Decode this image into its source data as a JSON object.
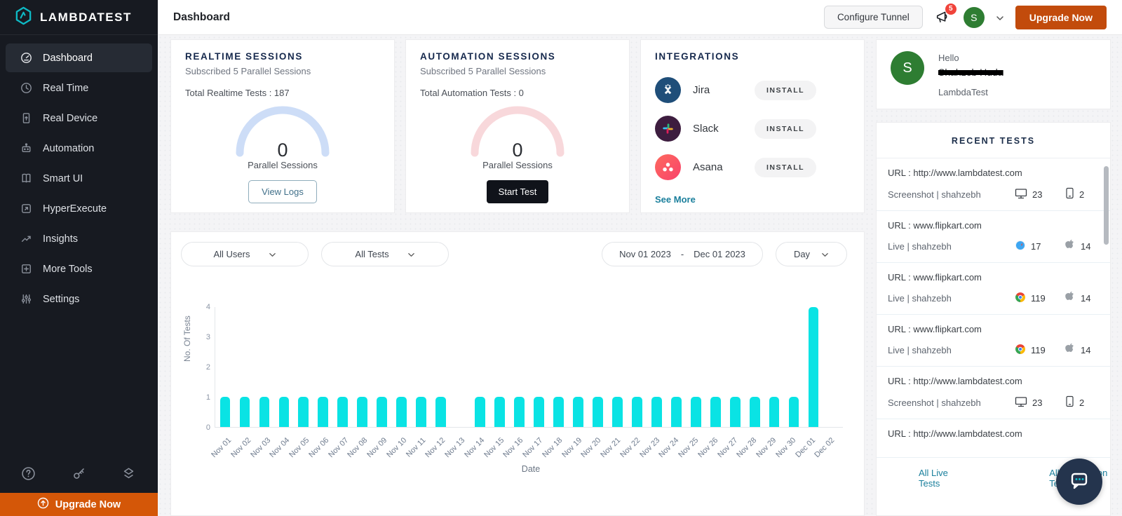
{
  "app": {
    "logo_text": "LAMBDATEST"
  },
  "sidebar": {
    "items": [
      {
        "id": "dashboard",
        "label": "Dashboard",
        "icon": "dashboard-icon",
        "active": true
      },
      {
        "id": "real-time",
        "label": "Real Time",
        "icon": "clock-icon"
      },
      {
        "id": "real-device",
        "label": "Real Device",
        "icon": "device-icon"
      },
      {
        "id": "automation",
        "label": "Automation",
        "icon": "robot-icon"
      },
      {
        "id": "smart-ui",
        "label": "Smart UI",
        "icon": "book-icon"
      },
      {
        "id": "hyperexecute",
        "label": "HyperExecute",
        "icon": "execute-icon"
      },
      {
        "id": "insights",
        "label": "Insights",
        "icon": "trend-icon"
      },
      {
        "id": "more-tools",
        "label": "More Tools",
        "icon": "plus-square-icon"
      },
      {
        "id": "settings",
        "label": "Settings",
        "icon": "sliders-icon"
      }
    ],
    "footer_icons": [
      {
        "id": "help",
        "icon": "help-icon"
      },
      {
        "id": "api-key",
        "icon": "key-icon"
      },
      {
        "id": "billing",
        "icon": "switch-icon"
      }
    ],
    "upgrade_label": "Upgrade Now"
  },
  "header": {
    "title": "Dashboard",
    "configure_tunnel_label": "Configure Tunnel",
    "notification_count": "5",
    "avatar_initial": "S",
    "upgrade_label": "Upgrade Now"
  },
  "cards": {
    "realtime": {
      "title": "REALTIME SESSIONS",
      "subtitle": "Subscribed 5 Parallel Sessions",
      "total": "Total Realtime Tests : 187",
      "gauge_value": "0",
      "gauge_label": "Parallel Sessions",
      "button_label": "View Logs",
      "arc_color": "#cdddf7"
    },
    "automation": {
      "title": "AUTOMATION SESSIONS",
      "subtitle": "Subscribed 5 Parallel Sessions",
      "total": "Total Automation Tests : 0",
      "gauge_value": "0",
      "gauge_label": "Parallel Sessions",
      "button_label": "Start Test",
      "arc_color": "#f8d8db"
    },
    "integrations": {
      "title": "INTEGRATIONS",
      "items": [
        {
          "name": "Jira",
          "action": "INSTALL",
          "icon": "jira-icon",
          "bg": "#1f4e79"
        },
        {
          "name": "Slack",
          "action": "INSTALL",
          "icon": "slack-icon",
          "bg": "#3d1d3f"
        },
        {
          "name": "Asana",
          "action": "INSTALL",
          "icon": "asana-icon",
          "bg": "linear-gradient(135deg,#fd6a5e,#f9426b)"
        }
      ],
      "see_more": "See More"
    }
  },
  "filters": {
    "users": "All Users",
    "tests": "All Tests",
    "date_from": "Nov 01 2023",
    "date_separator": "-",
    "date_to": "Dec 01 2023",
    "granularity": "Day"
  },
  "chart_data": {
    "type": "bar",
    "title": "",
    "xlabel": "Date",
    "ylabel": "No. Of Tests",
    "ylim": [
      0,
      4
    ],
    "yticks": [
      0,
      1,
      2,
      3,
      4
    ],
    "grid": false,
    "legend": "none",
    "bar_color": "#0ae3e4",
    "categories": [
      "Nov 01",
      "Nov 02",
      "Nov 03",
      "Nov 04",
      "Nov 05",
      "Nov 06",
      "Nov 07",
      "Nov 08",
      "Nov 09",
      "Nov 10",
      "Nov 11",
      "Nov 12",
      "Nov 13",
      "Nov 14",
      "Nov 15",
      "Nov 16",
      "Nov 17",
      "Nov 18",
      "Nov 19",
      "Nov 20",
      "Nov 21",
      "Nov 22",
      "Nov 23",
      "Nov 24",
      "Nov 25",
      "Nov 26",
      "Nov 27",
      "Nov 28",
      "Nov 29",
      "Nov 30",
      "Dec 01",
      "Dec 02"
    ],
    "values": [
      1,
      1,
      1,
      1,
      1,
      1,
      1,
      1,
      1,
      1,
      1,
      1,
      0,
      1,
      1,
      1,
      1,
      1,
      1,
      1,
      1,
      1,
      1,
      1,
      1,
      1,
      1,
      1,
      1,
      1,
      4,
      0
    ]
  },
  "user_panel": {
    "greeting": "Hello",
    "name": "Shahzeb Huda",
    "name_redacted": true,
    "org": "LambdaTest",
    "avatar_initial": "S"
  },
  "recent_tests": {
    "title": "RECENT TESTS",
    "items": [
      {
        "url": "URL : http://www.lambdatest.com",
        "meta": "Screenshot | shahzebh",
        "stat1_icon": "monitor-icon",
        "stat1": "23",
        "stat2_icon": "mobile-icon",
        "stat2": "2"
      },
      {
        "url": "URL : www.flipkart.com",
        "meta": "Live | shahzebh",
        "stat1_icon": "safari-icon",
        "stat1": "17",
        "stat2_icon": "apple-icon",
        "stat2": "14"
      },
      {
        "url": "URL : www.flipkart.com",
        "meta": "Live | shahzebh",
        "stat1_icon": "chrome-icon",
        "stat1": "119",
        "stat2_icon": "apple-icon",
        "stat2": "14"
      },
      {
        "url": "URL : www.flipkart.com",
        "meta": "Live | shahzebh",
        "stat1_icon": "chrome-icon",
        "stat1": "119",
        "stat2_icon": "apple-icon",
        "stat2": "14"
      },
      {
        "url": "URL : http://www.lambdatest.com",
        "meta": "Screenshot | shahzebh",
        "stat1_icon": "monitor-icon",
        "stat1": "23",
        "stat2_icon": "mobile-icon",
        "stat2": "2"
      },
      {
        "url": "URL : http://www.lambdatest.com"
      }
    ],
    "footer": {
      "live_label": "All Live Tests",
      "automation_label": "All Automation Tests"
    }
  },
  "colors": {
    "sidebar_bg": "#171a21",
    "sidebar_active": "#262b34",
    "accent_teal": "#0ebac5",
    "orange_button": "#c24b0c",
    "orange_bar": "#d45708",
    "bar_cyan": "#0ae3e4",
    "badge_red": "#f0433a",
    "avatar_green": "#2e7d32",
    "title_navy": "#16294d",
    "link_teal": "#1a7f9c"
  }
}
